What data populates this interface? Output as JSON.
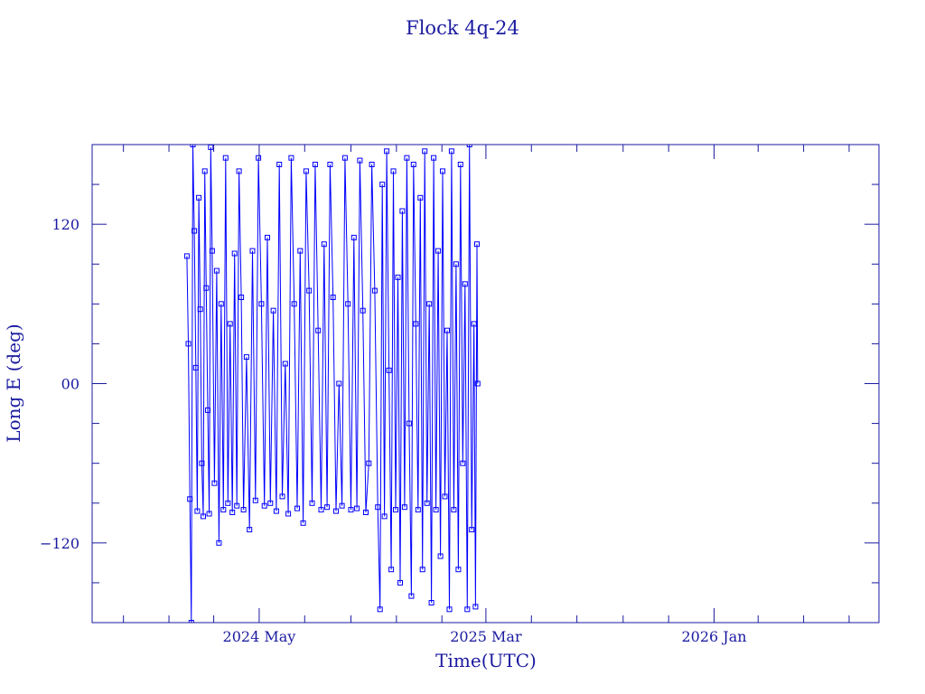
{
  "chart_data": {
    "type": "line",
    "title": "Flock 4q-24",
    "xlabel": "Time(UTC)",
    "ylabel": "Long E (deg)",
    "x_tick_labels": [
      "2024 May",
      "2025 Mar",
      "2026 Jan"
    ],
    "x_tick_dates": [
      "2024-05-01",
      "2025-03-01",
      "2026-01-01"
    ],
    "xlim": [
      "2023-09-20",
      "2026-08-10"
    ],
    "ylim": [
      -180,
      180
    ],
    "y_ticks": [
      -120,
      0,
      120
    ],
    "y_tick_labels": [
      "−120",
      "00",
      "120"
    ],
    "grid": false,
    "legend": "none",
    "data_span": [
      "2024-01-25",
      "2025-02-18"
    ],
    "series": [
      {
        "marker": "square",
        "values": [
          {
            "x": "2024-01-25",
            "y": 96
          },
          {
            "x": "2024-01-27",
            "y": 30
          },
          {
            "x": "2024-01-29",
            "y": -87
          },
          {
            "x": "2024-01-31",
            "y": -180
          },
          {
            "x": "2024-02-02",
            "y": 180
          },
          {
            "x": "2024-02-04",
            "y": 115
          },
          {
            "x": "2024-02-06",
            "y": 12
          },
          {
            "x": "2024-02-08",
            "y": -96
          },
          {
            "x": "2024-02-10",
            "y": 140
          },
          {
            "x": "2024-02-12",
            "y": 56
          },
          {
            "x": "2024-02-14",
            "y": -60
          },
          {
            "x": "2024-02-16",
            "y": -100
          },
          {
            "x": "2024-02-18",
            "y": 160
          },
          {
            "x": "2024-02-20",
            "y": 72
          },
          {
            "x": "2024-02-22",
            "y": -20
          },
          {
            "x": "2024-02-24",
            "y": -98
          },
          {
            "x": "2024-02-26",
            "y": 178
          },
          {
            "x": "2024-02-28",
            "y": 100
          },
          {
            "x": "2024-03-02",
            "y": -75
          },
          {
            "x": "2024-03-05",
            "y": 85
          },
          {
            "x": "2024-03-08",
            "y": -120
          },
          {
            "x": "2024-03-11",
            "y": 60
          },
          {
            "x": "2024-03-14",
            "y": -95
          },
          {
            "x": "2024-03-17",
            "y": 170
          },
          {
            "x": "2024-03-20",
            "y": -90
          },
          {
            "x": "2024-03-23",
            "y": 45
          },
          {
            "x": "2024-03-26",
            "y": -97
          },
          {
            "x": "2024-03-29",
            "y": 98
          },
          {
            "x": "2024-04-01",
            "y": -92
          },
          {
            "x": "2024-04-04",
            "y": 160
          },
          {
            "x": "2024-04-07",
            "y": 65
          },
          {
            "x": "2024-04-10",
            "y": -95
          },
          {
            "x": "2024-04-14",
            "y": 20
          },
          {
            "x": "2024-04-18",
            "y": -110
          },
          {
            "x": "2024-04-22",
            "y": 100
          },
          {
            "x": "2024-04-26",
            "y": -88
          },
          {
            "x": "2024-04-30",
            "y": 170
          },
          {
            "x": "2024-05-04",
            "y": 60
          },
          {
            "x": "2024-05-08",
            "y": -92
          },
          {
            "x": "2024-05-12",
            "y": 110
          },
          {
            "x": "2024-05-16",
            "y": -90
          },
          {
            "x": "2024-05-20",
            "y": 55
          },
          {
            "x": "2024-05-24",
            "y": -96
          },
          {
            "x": "2024-05-28",
            "y": 165
          },
          {
            "x": "2024-06-01",
            "y": -85
          },
          {
            "x": "2024-06-05",
            "y": 15
          },
          {
            "x": "2024-06-09",
            "y": -98
          },
          {
            "x": "2024-06-13",
            "y": 170
          },
          {
            "x": "2024-06-17",
            "y": 60
          },
          {
            "x": "2024-06-21",
            "y": -94
          },
          {
            "x": "2024-06-25",
            "y": 100
          },
          {
            "x": "2024-06-29",
            "y": -105
          },
          {
            "x": "2024-07-03",
            "y": 160
          },
          {
            "x": "2024-07-07",
            "y": 70
          },
          {
            "x": "2024-07-11",
            "y": -90
          },
          {
            "x": "2024-07-15",
            "y": 165
          },
          {
            "x": "2024-07-19",
            "y": 40
          },
          {
            "x": "2024-07-23",
            "y": -95
          },
          {
            "x": "2024-07-27",
            "y": 105
          },
          {
            "x": "2024-07-31",
            "y": -93
          },
          {
            "x": "2024-08-04",
            "y": 165
          },
          {
            "x": "2024-08-08",
            "y": 65
          },
          {
            "x": "2024-08-12",
            "y": -96
          },
          {
            "x": "2024-08-16",
            "y": 0
          },
          {
            "x": "2024-08-20",
            "y": -92
          },
          {
            "x": "2024-08-24",
            "y": 170
          },
          {
            "x": "2024-08-28",
            "y": 60
          },
          {
            "x": "2024-09-01",
            "y": -95
          },
          {
            "x": "2024-09-05",
            "y": 110
          },
          {
            "x": "2024-09-09",
            "y": -94
          },
          {
            "x": "2024-09-13",
            "y": 168
          },
          {
            "x": "2024-09-17",
            "y": 55
          },
          {
            "x": "2024-09-21",
            "y": -97
          },
          {
            "x": "2024-09-25",
            "y": -60
          },
          {
            "x": "2024-09-29",
            "y": 165
          },
          {
            "x": "2024-10-03",
            "y": 70
          },
          {
            "x": "2024-10-07",
            "y": -93
          },
          {
            "x": "2024-10-10",
            "y": -170
          },
          {
            "x": "2024-10-13",
            "y": 150
          },
          {
            "x": "2024-10-16",
            "y": -100
          },
          {
            "x": "2024-10-19",
            "y": 175
          },
          {
            "x": "2024-10-22",
            "y": 10
          },
          {
            "x": "2024-10-25",
            "y": -140
          },
          {
            "x": "2024-10-28",
            "y": 160
          },
          {
            "x": "2024-10-31",
            "y": -95
          },
          {
            "x": "2024-11-03",
            "y": 80
          },
          {
            "x": "2024-11-06",
            "y": -150
          },
          {
            "x": "2024-11-09",
            "y": 130
          },
          {
            "x": "2024-11-12",
            "y": -93
          },
          {
            "x": "2024-11-15",
            "y": 170
          },
          {
            "x": "2024-11-18",
            "y": -30
          },
          {
            "x": "2024-11-21",
            "y": -160
          },
          {
            "x": "2024-11-24",
            "y": 165
          },
          {
            "x": "2024-11-27",
            "y": 45
          },
          {
            "x": "2024-11-30",
            "y": -95
          },
          {
            "x": "2024-12-03",
            "y": 140
          },
          {
            "x": "2024-12-06",
            "y": -140
          },
          {
            "x": "2024-12-09",
            "y": 175
          },
          {
            "x": "2024-12-12",
            "y": -90
          },
          {
            "x": "2024-12-15",
            "y": 60
          },
          {
            "x": "2024-12-18",
            "y": -165
          },
          {
            "x": "2024-12-21",
            "y": 170
          },
          {
            "x": "2024-12-24",
            "y": -95
          },
          {
            "x": "2024-12-27",
            "y": 100
          },
          {
            "x": "2024-12-30",
            "y": -130
          },
          {
            "x": "2025-01-02",
            "y": 160
          },
          {
            "x": "2025-01-05",
            "y": -85
          },
          {
            "x": "2025-01-08",
            "y": 40
          },
          {
            "x": "2025-01-11",
            "y": -170
          },
          {
            "x": "2025-01-14",
            "y": 175
          },
          {
            "x": "2025-01-17",
            "y": -95
          },
          {
            "x": "2025-01-20",
            "y": 90
          },
          {
            "x": "2025-01-23",
            "y": -140
          },
          {
            "x": "2025-01-26",
            "y": 165
          },
          {
            "x": "2025-01-29",
            "y": -60
          },
          {
            "x": "2025-02-01",
            "y": 75
          },
          {
            "x": "2025-02-04",
            "y": -170
          },
          {
            "x": "2025-02-07",
            "y": 180
          },
          {
            "x": "2025-02-10",
            "y": -110
          },
          {
            "x": "2025-02-13",
            "y": 45
          },
          {
            "x": "2025-02-15",
            "y": -168
          },
          {
            "x": "2025-02-17",
            "y": 105
          },
          {
            "x": "2025-02-18",
            "y": 0
          }
        ]
      }
    ],
    "colors": {
      "axes": "#1a1aa0",
      "series": "#0000ff"
    }
  }
}
